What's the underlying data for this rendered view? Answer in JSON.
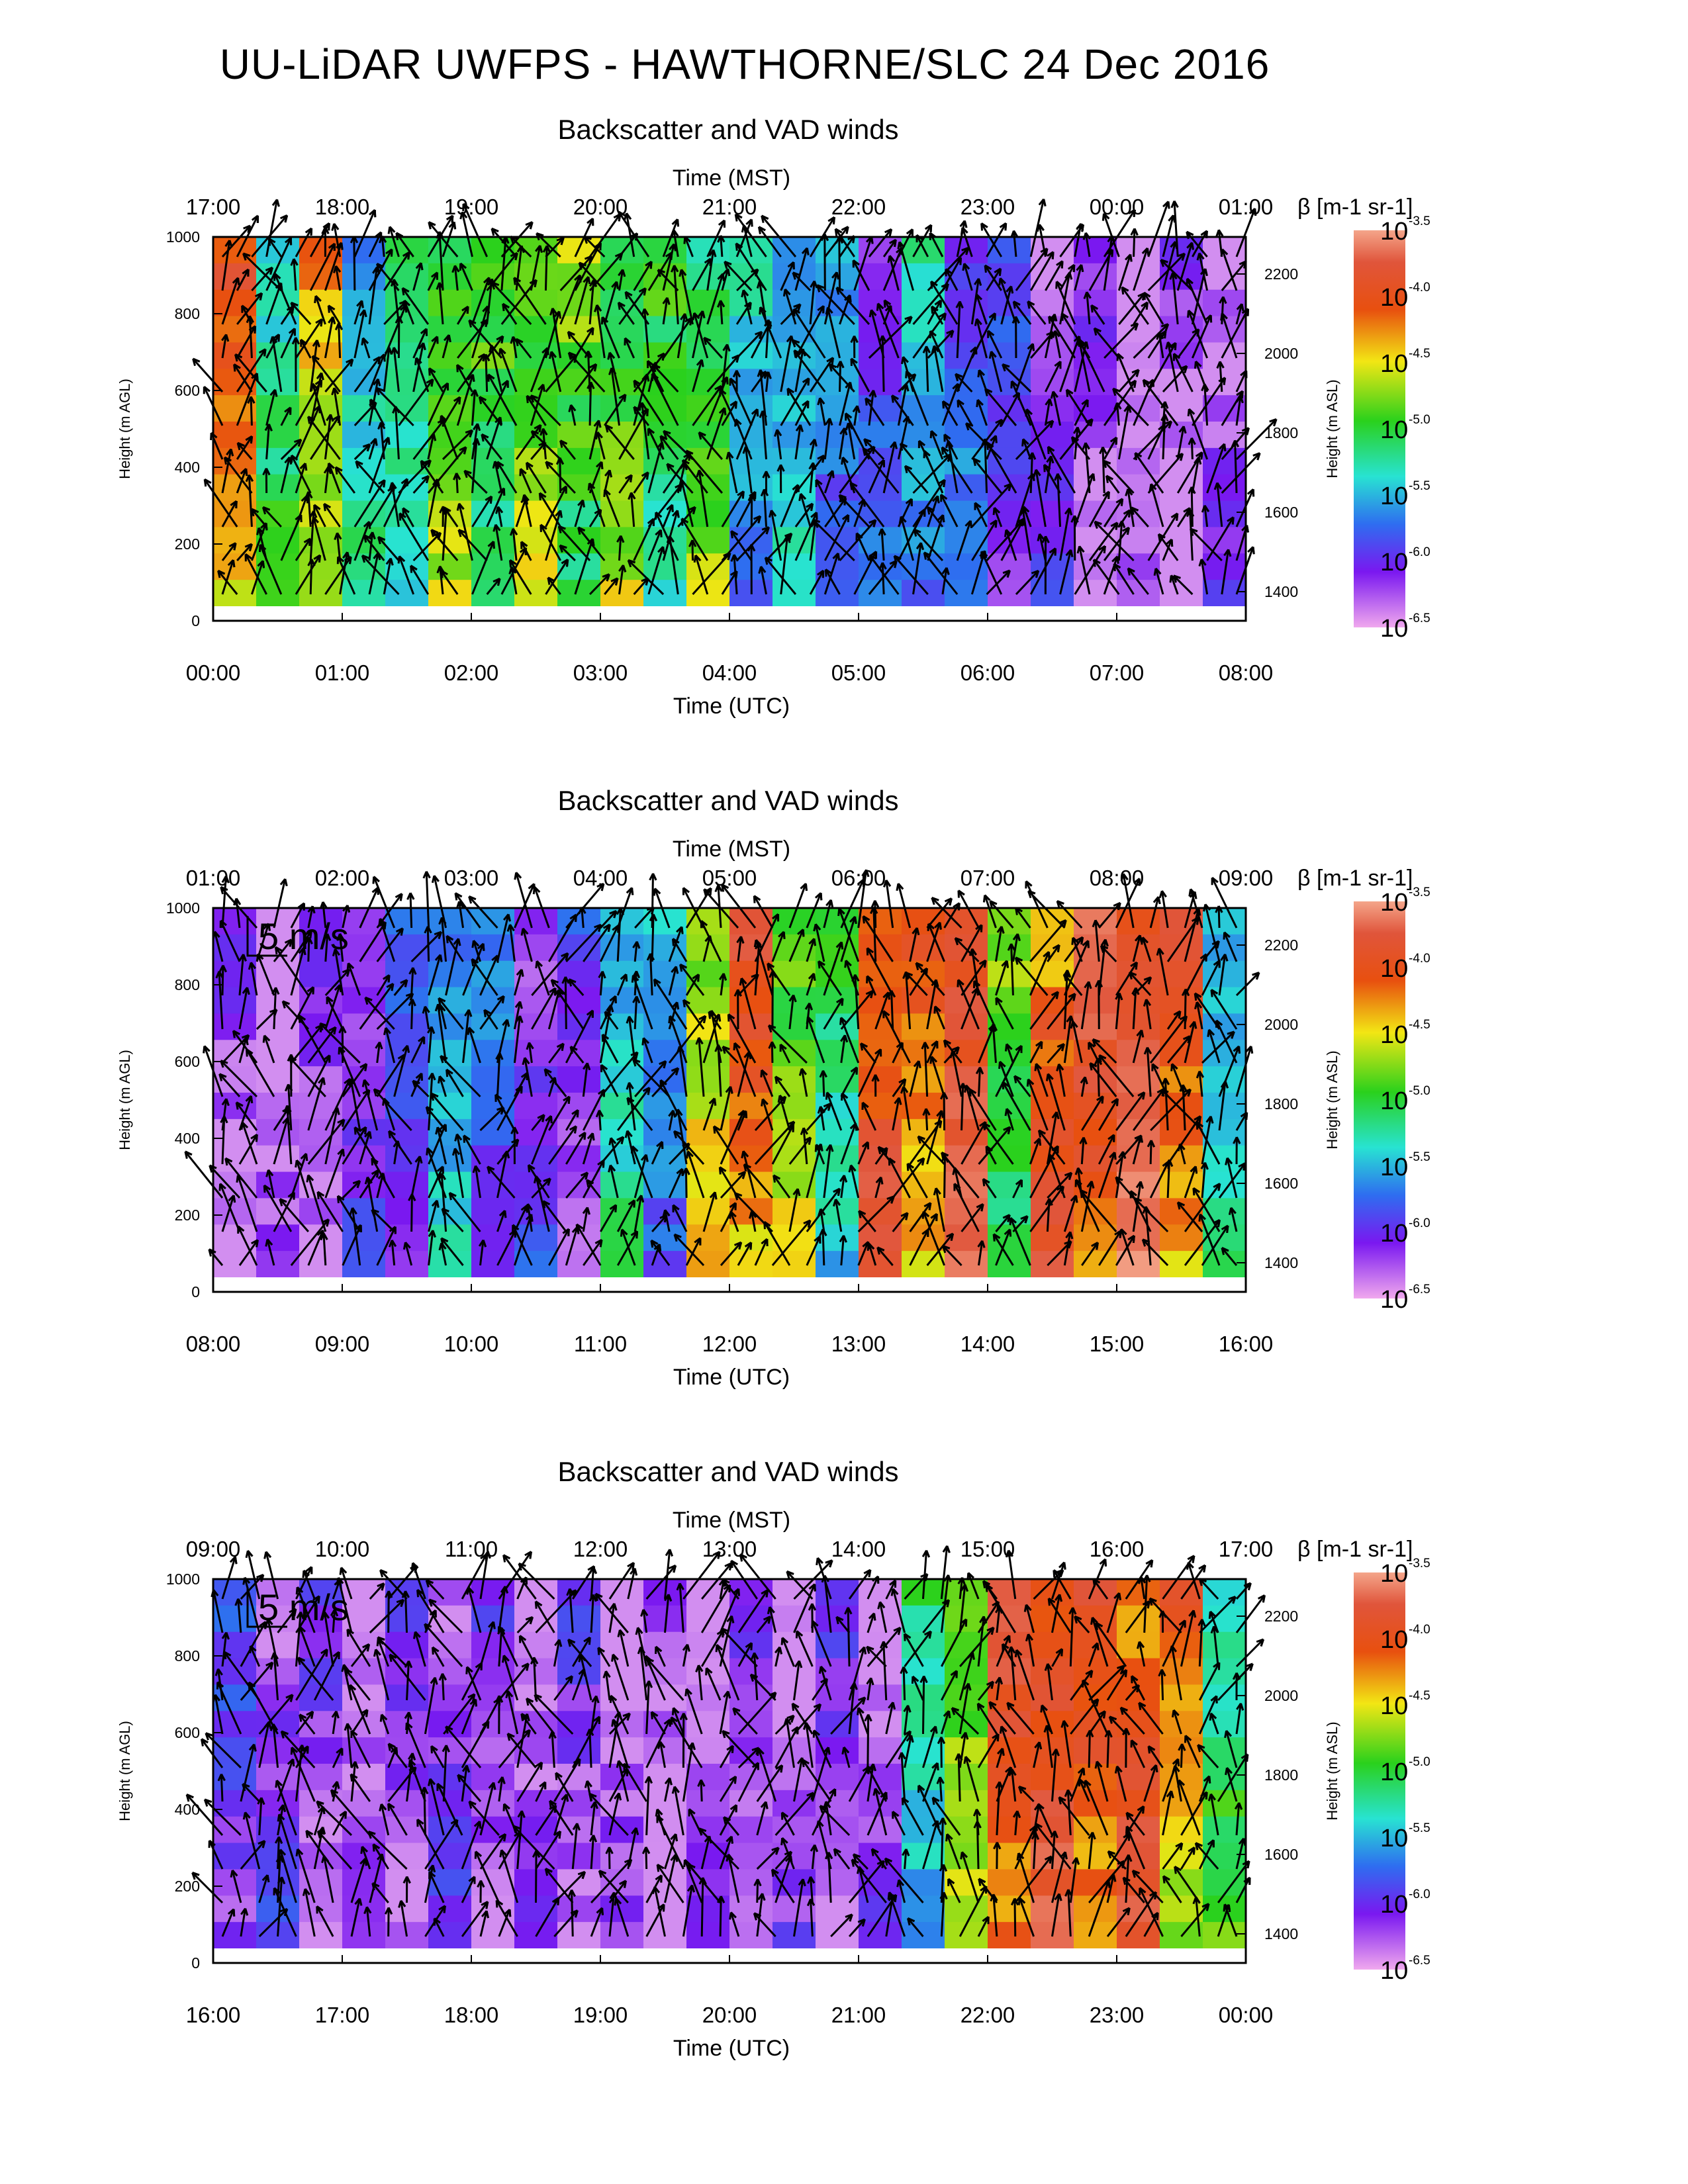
{
  "title": "UU-LiDAR UWFPS - HAWTHORNE/SLC 24 Dec 2016",
  "chart_data": [
    {
      "type": "heatmap",
      "title": "Backscatter and VAD winds",
      "top_axis_label": "Time (MST)",
      "top_ticks": [
        "17:00",
        "18:00",
        "19:00",
        "20:00",
        "21:00",
        "22:00",
        "23:00",
        "00:00",
        "01:00"
      ],
      "xlabel": "Time (UTC)",
      "x_ticks": [
        "00:00",
        "01:00",
        "02:00",
        "03:00",
        "04:00",
        "05:00",
        "06:00",
        "07:00",
        "08:00"
      ],
      "ylabel": "Height (m AGL)",
      "y_ticks": [
        "0",
        "200",
        "400",
        "600",
        "800",
        "1000"
      ],
      "ylim": [
        0,
        1000
      ],
      "y2label": "Height (m ASL)",
      "y2_ticks": [
        "1400",
        "1600",
        "1800",
        "2000",
        "2200"
      ],
      "colorbar_label": "β [m-1 sr-1]",
      "colorbar_ticks": [
        "-3.5",
        "-4.0",
        "-4.5",
        "-5.0",
        "-5.5",
        "-6.0",
        "-6.5"
      ],
      "colorbar_base": "10",
      "wind_scale_label": "",
      "backscatter_profile": [
        -4.4,
        -5.2,
        -4.7,
        -5.4,
        -5.3,
        -4.9,
        -5.1,
        -4.8,
        -5.0,
        -4.9,
        -5.2,
        -5.0,
        -5.6,
        -5.5,
        -5.8,
        -5.9,
        -5.6,
        -5.8,
        -6.1,
        -6.3,
        -6.4,
        -6.5,
        -6.5,
        -6.3
      ],
      "wind_density": 1.0
    },
    {
      "type": "heatmap",
      "title": "Backscatter and VAD winds",
      "top_axis_label": "Time (MST)",
      "top_ticks": [
        "01:00",
        "02:00",
        "03:00",
        "04:00",
        "05:00",
        "06:00",
        "07:00",
        "08:00",
        "09:00"
      ],
      "xlabel": "Time (UTC)",
      "x_ticks": [
        "08:00",
        "09:00",
        "10:00",
        "11:00",
        "12:00",
        "13:00",
        "14:00",
        "15:00",
        "16:00"
      ],
      "ylabel": "Height (m AGL)",
      "y_ticks": [
        "0",
        "200",
        "400",
        "600",
        "800",
        "1000"
      ],
      "ylim": [
        0,
        1000
      ],
      "y2label": "Height (m ASL)",
      "y2_ticks": [
        "1400",
        "1600",
        "1800",
        "2000",
        "2200"
      ],
      "colorbar_label": "β [m-1 sr-1]",
      "colorbar_ticks": [
        "-3.5",
        "-4.0",
        "-4.5",
        "-5.0",
        "-5.5",
        "-6.0",
        "-6.5"
      ],
      "colorbar_base": "10",
      "wind_scale_label": "5 m/s",
      "backscatter_profile": [
        -6.4,
        -6.5,
        -6.3,
        -6.2,
        -6.0,
        -5.6,
        -5.9,
        -6.1,
        -6.2,
        -5.4,
        -5.7,
        -4.6,
        -4.3,
        -4.8,
        -5.3,
        -4.2,
        -4.4,
        -4.0,
        -5.0,
        -4.2,
        -4.1,
        -3.9,
        -4.3,
        -5.4
      ],
      "wind_density": 0.85
    },
    {
      "type": "heatmap",
      "title": "Backscatter and VAD winds",
      "top_axis_label": "Time (MST)",
      "top_ticks": [
        "09:00",
        "10:00",
        "11:00",
        "12:00",
        "13:00",
        "14:00",
        "15:00",
        "16:00",
        "17:00"
      ],
      "xlabel": "Time (UTC)",
      "x_ticks": [
        "16:00",
        "17:00",
        "18:00",
        "19:00",
        "20:00",
        "21:00",
        "22:00",
        "23:00",
        "00:00"
      ],
      "ylabel": "Height (m AGL)",
      "y_ticks": [
        "0",
        "200",
        "400",
        "600",
        "800",
        "1000"
      ],
      "ylim": [
        0,
        1000
      ],
      "y2label": "Height (m ASL)",
      "y2_ticks": [
        "1400",
        "1600",
        "1800",
        "2000",
        "2200"
      ],
      "colorbar_label": "β [m-1 sr-1]",
      "colorbar_ticks": [
        "-3.5",
        "-4.0",
        "-4.5",
        "-5.0",
        "-5.5",
        "-6.0",
        "-6.5"
      ],
      "colorbar_base": "10",
      "wind_scale_label": "5 m/s",
      "backscatter_profile": [
        -6.1,
        -6.2,
        -6.3,
        -6.4,
        -6.3,
        -6.2,
        -6.3,
        -6.4,
        -6.3,
        -6.4,
        -6.5,
        -6.4,
        -6.3,
        -6.4,
        -6.3,
        -6.4,
        -5.4,
        -4.8,
        -4.2,
        -4.1,
        -4.3,
        -4.2,
        -4.5,
        -5.1
      ],
      "wind_density": 0.8
    }
  ]
}
